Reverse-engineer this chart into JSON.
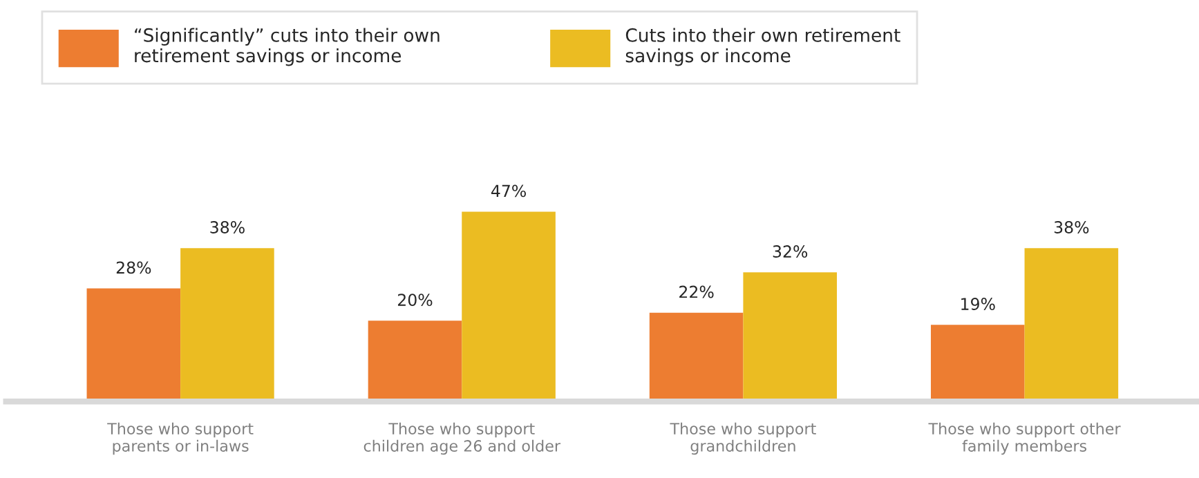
{
  "chart_data": {
    "type": "bar",
    "categories": [
      "Those who support\nparents or in-laws",
      "Those who support\nchildren age 26 and older",
      "Those who support\ngrandchildren",
      "Those who support other\nfamily members"
    ],
    "series": [
      {
        "name": "“Significantly” cuts into their own\nretirement savings or income",
        "color": "#ed7d31",
        "values": [
          28,
          20,
          22,
          19
        ],
        "value_labels": [
          "28%",
          "20%",
          "22%",
          "19%"
        ]
      },
      {
        "name": "Cuts into their own retirement\nsavings or income",
        "color": "#ebbc22",
        "values": [
          38,
          47,
          32,
          38
        ],
        "value_labels": [
          "38%",
          "47%",
          "32%",
          "38%"
        ]
      }
    ],
    "legend": "top",
    "grid": false
  }
}
